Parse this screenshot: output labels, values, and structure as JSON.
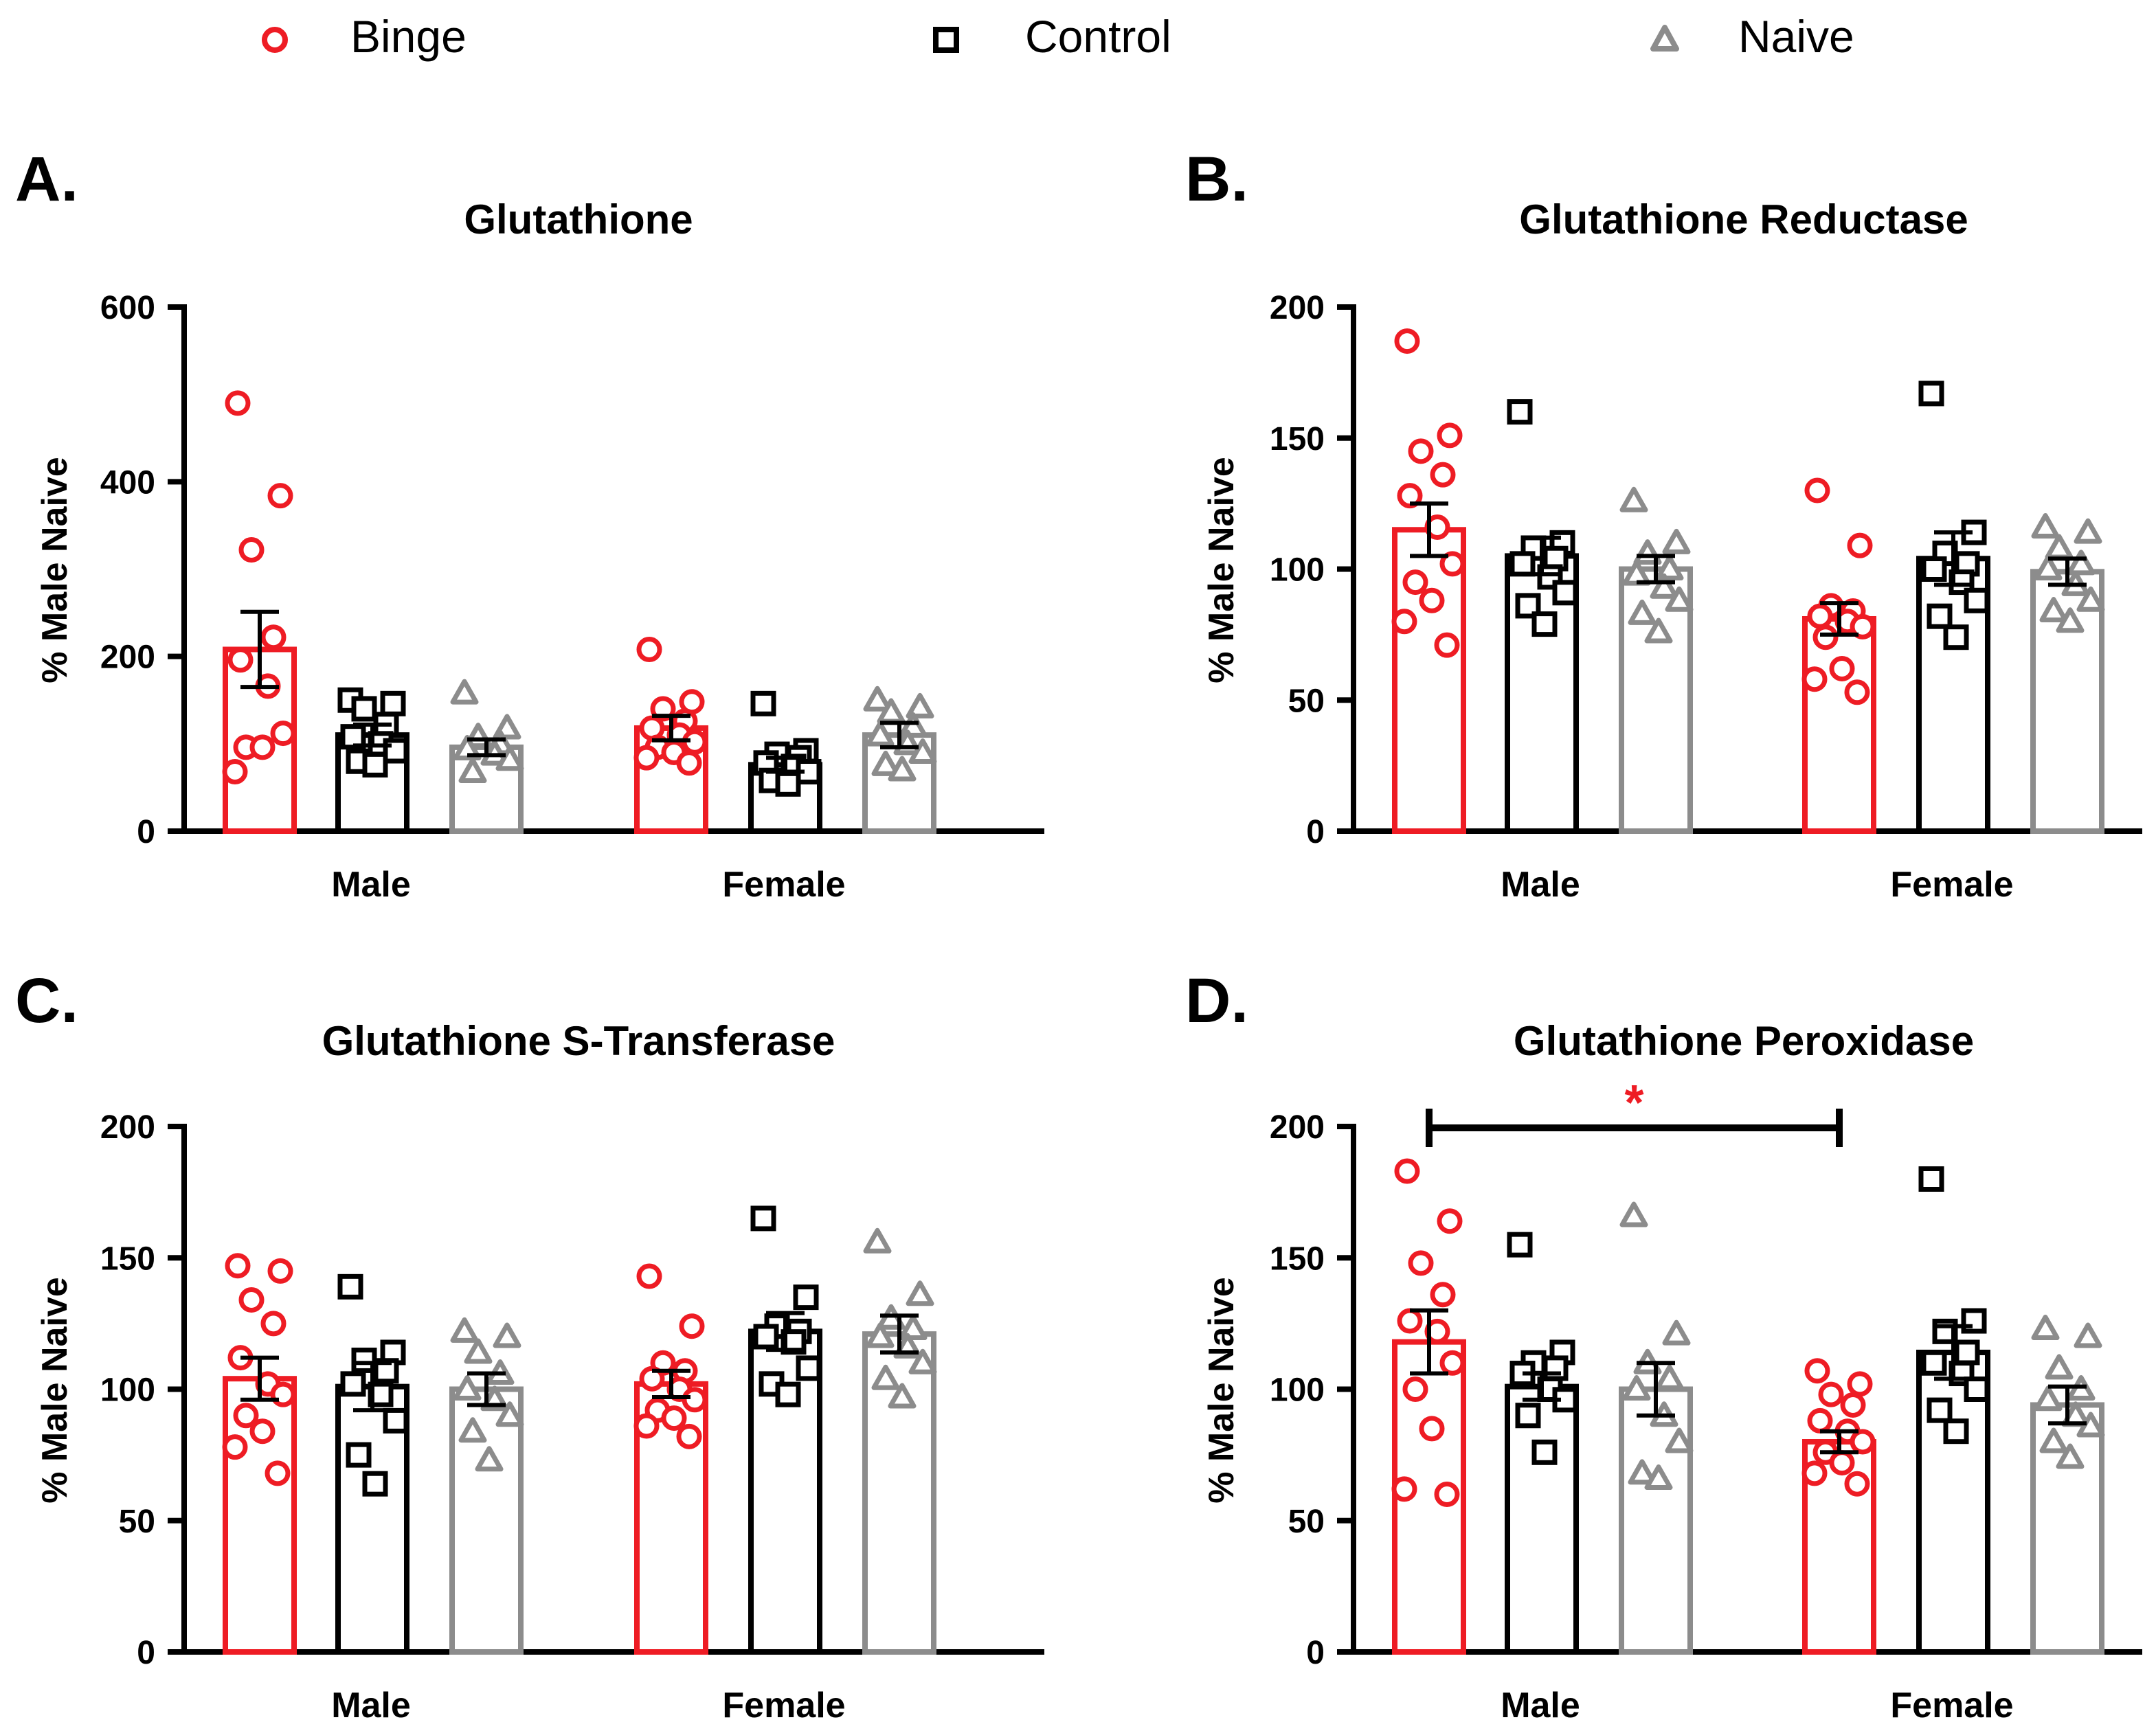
{
  "legend": {
    "items": [
      {
        "key": "binge",
        "label": "Binge",
        "marker": "circle",
        "color": "#ee1c24"
      },
      {
        "key": "control",
        "label": "Control",
        "marker": "square",
        "color": "#000000"
      },
      {
        "key": "naive",
        "label": "Naive",
        "marker": "triangle",
        "color": "#8c8c8c"
      }
    ]
  },
  "colors": {
    "binge": "#ee1c24",
    "control": "#000000",
    "naive": "#8c8c8c",
    "axis": "#000000"
  },
  "chart_data": [
    {
      "type": "bar",
      "panel_label": "A.",
      "title": "Glutathione",
      "ylabel": "% Male Naive",
      "xlabel": "",
      "categories": [
        "Male",
        "Female"
      ],
      "ylim": [
        0,
        600
      ],
      "yticks": [
        0,
        200,
        400,
        600
      ],
      "series": [
        {
          "name": "Binge",
          "key": "binge",
          "means": [
            208,
            118
          ],
          "sem": [
            43,
            14
          ],
          "points": [
            [
              490,
              384,
              322,
              222,
              196,
              166,
              112,
              96,
              96,
              68
            ],
            [
              208,
              148,
              140,
              126,
              118,
              110,
              102,
              96,
              90,
              84,
              78
            ]
          ]
        },
        {
          "name": "Control",
          "key": "control",
          "means": [
            110,
            76
          ],
          "sem": [
            12,
            8
          ],
          "points": [
            [
              150,
              146,
              140,
              122,
              108,
              100,
              92,
              80,
              76
            ],
            [
              146,
              92,
              88,
              84,
              78,
              74,
              68,
              58,
              54
            ]
          ]
        },
        {
          "name": "Naive",
          "key": "naive",
          "means": [
            96,
            110
          ],
          "sem": [
            9,
            14
          ],
          "points": [
            [
              158,
              118,
              108,
              100,
              94,
              88,
              82,
              68
            ],
            [
              150,
              142,
              136,
              120,
              110,
              100,
              90,
              76,
              70
            ]
          ]
        }
      ],
      "significance": []
    },
    {
      "type": "bar",
      "panel_label": "B.",
      "title": "Glutathione Reductase",
      "ylabel": "% Male Naive",
      "xlabel": "",
      "categories": [
        "Male",
        "Female"
      ],
      "ylim": [
        0,
        200
      ],
      "yticks": [
        0,
        50,
        100,
        150,
        200
      ],
      "series": [
        {
          "name": "Binge",
          "key": "binge",
          "means": [
            115,
            81
          ],
          "sem": [
            10,
            6
          ],
          "points": [
            [
              187,
              151,
              145,
              136,
              128,
              116,
              102,
              95,
              88,
              80,
              71
            ],
            [
              130,
              109,
              86,
              84,
              82,
              80,
              78,
              74,
              62,
              58,
              53
            ]
          ]
        },
        {
          "name": "Control",
          "key": "control",
          "means": [
            105,
            104
          ],
          "sem": [
            7,
            10
          ],
          "points": [
            [
              160,
              110,
              108,
              104,
              102,
              97,
              91,
              86,
              79
            ],
            [
              167,
              114,
              106,
              102,
              100,
              95,
              88,
              82,
              74
            ]
          ]
        },
        {
          "name": "Naive",
          "key": "naive",
          "means": [
            100,
            99
          ],
          "sem": [
            5,
            5
          ],
          "points": [
            [
              126,
              110,
              106,
              100,
              98,
              93,
              88,
              83,
              76
            ],
            [
              116,
              114,
              108,
              102,
              100,
              94,
              88,
              84,
              80
            ]
          ]
        }
      ],
      "significance": []
    },
    {
      "type": "bar",
      "panel_label": "C.",
      "title": "Glutathione S-Transferase",
      "ylabel": "% Male Naive",
      "xlabel": "",
      "categories": [
        "Male",
        "Female"
      ],
      "ylim": [
        0,
        200
      ],
      "yticks": [
        0,
        50,
        100,
        150,
        200
      ],
      "series": [
        {
          "name": "Binge",
          "key": "binge",
          "means": [
            104,
            102
          ],
          "sem": [
            8,
            5
          ],
          "points": [
            [
              147,
              145,
              134,
              125,
              112,
              102,
              98,
              90,
              84,
              78,
              68
            ],
            [
              143,
              124,
              110,
              107,
              104,
              100,
              96,
              92,
              89,
              86,
              82
            ]
          ]
        },
        {
          "name": "Control",
          "key": "control",
          "means": [
            101,
            122
          ],
          "sem": [
            9,
            7
          ],
          "points": [
            [
              139,
              114,
              111,
              107,
              102,
              98,
              88,
              75,
              64
            ],
            [
              165,
              135,
              124,
              122,
              120,
              118,
              108,
              102,
              98
            ]
          ]
        },
        {
          "name": "Naive",
          "key": "naive",
          "means": [
            100,
            121
          ],
          "sem": [
            6,
            7
          ],
          "points": [
            [
              122,
              120,
              114,
              106,
              100,
              96,
              90,
              84,
              73
            ],
            [
              156,
              136,
              127,
              123,
              120,
              116,
              110,
              104,
              97
            ]
          ]
        }
      ],
      "significance": []
    },
    {
      "type": "bar",
      "panel_label": "D.",
      "title": "Glutathione Peroxidase",
      "ylabel": "% Male Naive",
      "xlabel": "",
      "categories": [
        "Male",
        "Female"
      ],
      "ylim": [
        0,
        200
      ],
      "yticks": [
        0,
        50,
        100,
        150,
        200
      ],
      "series": [
        {
          "name": "Binge",
          "key": "binge",
          "means": [
            118,
            80
          ],
          "sem": [
            12,
            4
          ],
          "points": [
            [
              183,
              164,
              148,
              136,
              126,
              122,
              110,
              100,
              85,
              62,
              60
            ],
            [
              107,
              102,
              98,
              94,
              88,
              84,
              80,
              76,
              72,
              68,
              64
            ]
          ]
        },
        {
          "name": "Control",
          "key": "control",
          "means": [
            101,
            114
          ],
          "sem": [
            5,
            10
          ],
          "points": [
            [
              155,
              114,
              110,
              108,
              106,
              100,
              96,
              90,
              76
            ],
            [
              180,
              126,
              122,
              114,
              110,
              106,
              100,
              92,
              84
            ]
          ]
        },
        {
          "name": "Naive",
          "key": "naive",
          "means": [
            100,
            94
          ],
          "sem": [
            10,
            7
          ],
          "points": [
            [
              166,
              121,
              110,
              104,
              100,
              90,
              80,
              68,
              66
            ],
            [
              123,
              120,
              108,
              100,
              96,
              90,
              86,
              80,
              74
            ]
          ]
        }
      ],
      "significance": [
        {
          "from": "Male-Binge",
          "to": "Female-Binge",
          "label": "*"
        }
      ]
    }
  ]
}
